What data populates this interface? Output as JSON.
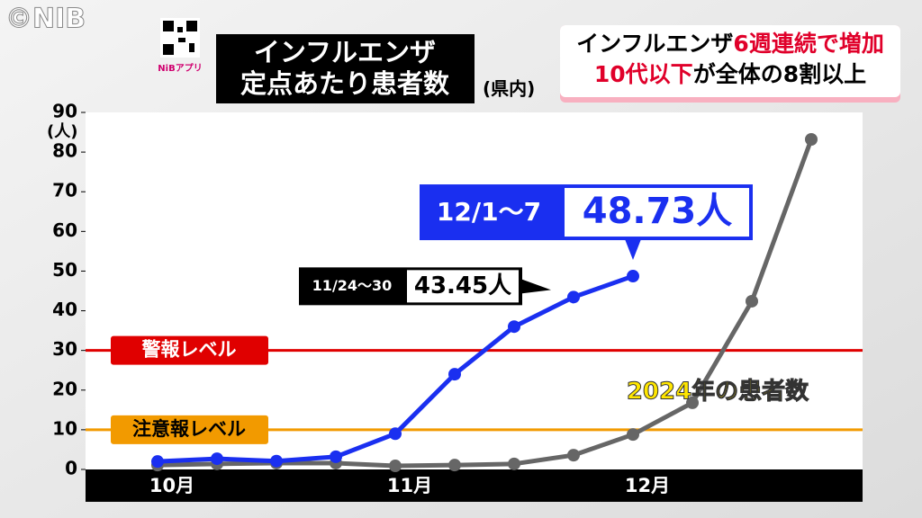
{
  "logo": "©NIB",
  "app_label": "NiBアプリ",
  "headline": {
    "line1": [
      "インフルエンザ",
      "6週連続で増加"
    ],
    "line2": [
      "10代以下",
      "が全体の8割以上"
    ]
  },
  "chart_data": {
    "type": "line",
    "title": [
      "インフルエンザ",
      "定点あたり患者数"
    ],
    "subtitle": "(県内)",
    "y_unit": "(人)",
    "categories": [
      "10月",
      null,
      null,
      null,
      "11月",
      null,
      null,
      null,
      "12月",
      null,
      null,
      null
    ],
    "series": [
      {
        "color": "#1a2ff0",
        "values": [
          2.0,
          2.7,
          2.1,
          3.2,
          9.0,
          24.0,
          36.0,
          43.45,
          48.73,
          null,
          null,
          null
        ],
        "value_labels": [
          null,
          null,
          null,
          null,
          null,
          null,
          null,
          "43.45人",
          "48.73人",
          null,
          null,
          null
        ],
        "point_labels": [
          null,
          null,
          null,
          null,
          null,
          null,
          null,
          "11/24～30",
          "12/1～7",
          null,
          null,
          null
        ]
      },
      {
        "name": "2024年の患者数",
        "color": "#666666",
        "values": [
          1.1,
          1.4,
          1.6,
          1.6,
          0.9,
          1.1,
          1.4,
          3.6,
          8.8,
          16.8,
          42.4,
          83.2
        ]
      }
    ],
    "reference_lines": [
      {
        "value": 30,
        "label": "警報レベル",
        "color": "#e00000"
      },
      {
        "value": 10,
        "label": "注意報レベル",
        "color": "#f29a00"
      }
    ],
    "ylim": [
      0,
      90
    ],
    "yticks": [
      0,
      10,
      20,
      30,
      40,
      50,
      60,
      70,
      80,
      90
    ]
  }
}
